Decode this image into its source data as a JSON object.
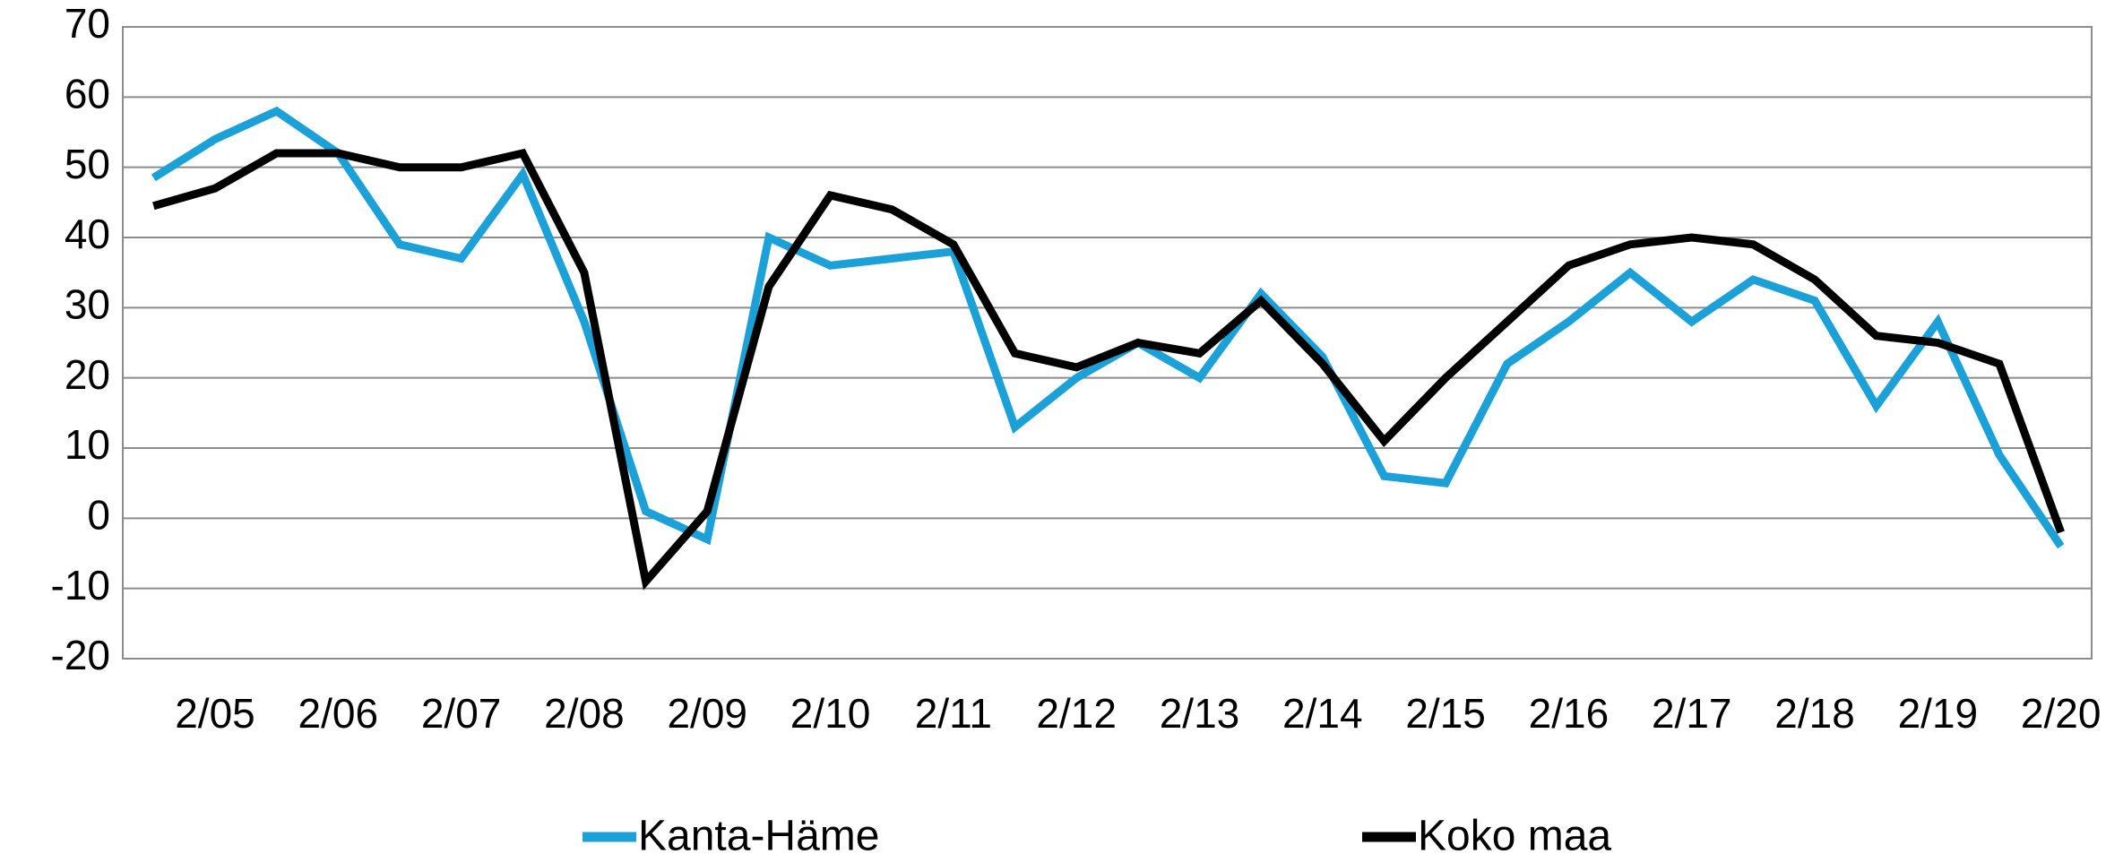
{
  "chart_data": {
    "type": "line",
    "categories": [
      null,
      "2/05",
      null,
      "2/06",
      null,
      "2/07",
      null,
      "2/08",
      null,
      "2/09",
      null,
      "2/10",
      null,
      "2/11",
      null,
      "2/12",
      null,
      "2/13",
      null,
      "2/14",
      null,
      "2/15",
      null,
      "2/16",
      null,
      "2/17",
      null,
      "2/18",
      null,
      "2/19",
      null,
      "2/20"
    ],
    "series": [
      {
        "name": "Kanta-Häme",
        "color": "#1ba1d8",
        "values": [
          48.5,
          54,
          58,
          52,
          39,
          37,
          49,
          28,
          1,
          -3,
          40,
          36,
          37,
          38,
          13,
          20,
          25,
          20,
          32,
          23,
          6,
          5,
          22,
          28,
          35,
          28,
          34,
          31,
          16,
          28,
          9,
          -4
        ]
      },
      {
        "name": "Koko maa",
        "color": "#000000",
        "values": [
          44.5,
          47,
          52,
          52,
          50,
          50,
          52,
          35,
          -9,
          1,
          33,
          46,
          44,
          39,
          23.5,
          21.5,
          25,
          23.5,
          31,
          22,
          11,
          20,
          28,
          36,
          39,
          40,
          39,
          34,
          26,
          25,
          22,
          -2
        ]
      }
    ],
    "ylim": [
      -20,
      70
    ],
    "yticks": [
      -20,
      -10,
      0,
      10,
      20,
      30,
      40,
      50,
      60,
      70
    ],
    "grid": true,
    "legend": "bottom"
  }
}
